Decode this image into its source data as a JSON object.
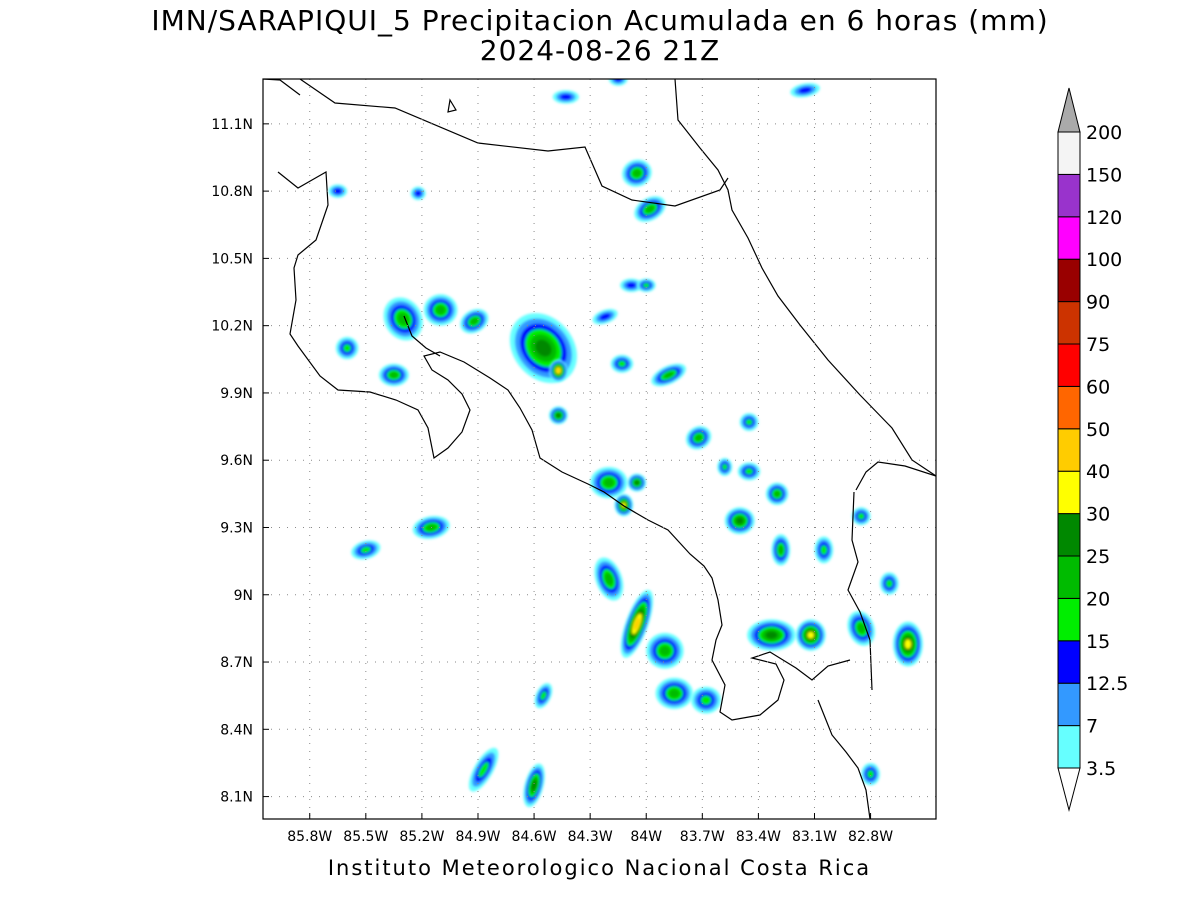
{
  "title": {
    "line1": "IMN/SARAPIQUI_5 Precipitacion Acumulada en 6 horas (mm)",
    "line2": "2024-08-26 21Z"
  },
  "credit": "Instituto Meteorologico Nacional Costa Rica",
  "map": {
    "lon_range": [
      -86.05,
      -82.45
    ],
    "lat_range": [
      8.0,
      11.3
    ],
    "lon_ticks": [
      {
        "value": -85.8,
        "label": "85.8W"
      },
      {
        "value": -85.5,
        "label": "85.5W"
      },
      {
        "value": -85.2,
        "label": "85.2W"
      },
      {
        "value": -84.9,
        "label": "84.9W"
      },
      {
        "value": -84.6,
        "label": "84.6W"
      },
      {
        "value": -84.3,
        "label": "84.3W"
      },
      {
        "value": -84.0,
        "label": "84W"
      },
      {
        "value": -83.7,
        "label": "83.7W"
      },
      {
        "value": -83.4,
        "label": "83.4W"
      },
      {
        "value": -83.1,
        "label": "83.1W"
      },
      {
        "value": -82.8,
        "label": "82.8W"
      }
    ],
    "lat_ticks": [
      {
        "value": 8.1,
        "label": "8.1N"
      },
      {
        "value": 8.4,
        "label": "8.4N"
      },
      {
        "value": 8.7,
        "label": "8.7N"
      },
      {
        "value": 9.0,
        "label": "9N"
      },
      {
        "value": 9.3,
        "label": "9.3N"
      },
      {
        "value": 9.6,
        "label": "9.6N"
      },
      {
        "value": 9.9,
        "label": "9.9N"
      },
      {
        "value": 10.2,
        "label": "10.2N"
      },
      {
        "value": 10.5,
        "label": "10.5N"
      },
      {
        "value": 10.8,
        "label": "10.8N"
      },
      {
        "value": 11.1,
        "label": "11.1N"
      }
    ],
    "grid": true
  },
  "legend": {
    "levels": [
      "3.5",
      "7",
      "12.5",
      "15",
      "20",
      "25",
      "30",
      "40",
      "50",
      "60",
      "75",
      "90",
      "100",
      "120",
      "150",
      "200"
    ],
    "colors": [
      "#ffffff",
      "#66ffff",
      "#3399ff",
      "#0000ff",
      "#00ee00",
      "#00bb00",
      "#008800",
      "#ffff00",
      "#ffcc00",
      "#ff6600",
      "#ff0000",
      "#cc3300",
      "#990000",
      "#ff00ff",
      "#9933cc",
      "#f4f4f4",
      "#aaaaaa"
    ]
  },
  "precip_cells": [
    {
      "lon": -84.55,
      "lat": 10.1,
      "peak": 6,
      "rx": 0.16,
      "ry": 0.17,
      "rot": -40
    },
    {
      "lon": -84.47,
      "lat": 10.0,
      "peak": 8,
      "rx": 0.05,
      "ry": 0.05,
      "rot": 0
    },
    {
      "lon": -85.3,
      "lat": 10.23,
      "peak": 5,
      "rx": 0.1,
      "ry": 0.1,
      "rot": -30
    },
    {
      "lon": -85.1,
      "lat": 10.27,
      "peak": 5,
      "rx": 0.09,
      "ry": 0.07,
      "rot": 0
    },
    {
      "lon": -85.6,
      "lat": 10.1,
      "peak": 4,
      "rx": 0.06,
      "ry": 0.05,
      "rot": 0
    },
    {
      "lon": -84.92,
      "lat": 10.22,
      "peak": 5,
      "rx": 0.08,
      "ry": 0.05,
      "rot": -30
    },
    {
      "lon": -85.35,
      "lat": 9.98,
      "peak": 5,
      "rx": 0.08,
      "ry": 0.05,
      "rot": 0
    },
    {
      "lon": -83.88,
      "lat": 9.98,
      "peak": 5,
      "rx": 0.1,
      "ry": 0.04,
      "rot": -25
    },
    {
      "lon": -84.13,
      "lat": 10.03,
      "peak": 4,
      "rx": 0.06,
      "ry": 0.04,
      "rot": 0
    },
    {
      "lon": -84.47,
      "lat": 9.8,
      "peak": 6,
      "rx": 0.05,
      "ry": 0.04,
      "rot": 0
    },
    {
      "lon": -83.98,
      "lat": 10.72,
      "peak": 5,
      "rx": 0.09,
      "ry": 0.05,
      "rot": -30
    },
    {
      "lon": -84.08,
      "lat": 10.38,
      "peak": 3,
      "rx": 0.06,
      "ry": 0.03,
      "rot": 0
    },
    {
      "lon": -84.22,
      "lat": 10.24,
      "peak": 3,
      "rx": 0.07,
      "ry": 0.03,
      "rot": -20
    },
    {
      "lon": -84.2,
      "lat": 9.5,
      "peak": 5,
      "rx": 0.1,
      "ry": 0.07,
      "rot": 0
    },
    {
      "lon": -84.05,
      "lat": 9.5,
      "peak": 6,
      "rx": 0.05,
      "ry": 0.04,
      "rot": 0
    },
    {
      "lon": -84.12,
      "lat": 9.4,
      "peak": 7,
      "rx": 0.05,
      "ry": 0.05,
      "rot": 0
    },
    {
      "lon": -83.72,
      "lat": 9.7,
      "peak": 5,
      "rx": 0.07,
      "ry": 0.05,
      "rot": -30
    },
    {
      "lon": -83.45,
      "lat": 9.77,
      "peak": 4,
      "rx": 0.05,
      "ry": 0.04,
      "rot": 0
    },
    {
      "lon": -83.45,
      "lat": 9.55,
      "peak": 4,
      "rx": 0.06,
      "ry": 0.04,
      "rot": 0
    },
    {
      "lon": -83.3,
      "lat": 9.45,
      "peak": 5,
      "rx": 0.06,
      "ry": 0.05,
      "rot": 0
    },
    {
      "lon": -83.5,
      "lat": 9.33,
      "peak": 6,
      "rx": 0.08,
      "ry": 0.06,
      "rot": 0
    },
    {
      "lon": -83.28,
      "lat": 9.2,
      "peak": 5,
      "rx": 0.05,
      "ry": 0.07,
      "rot": 0
    },
    {
      "lon": -83.05,
      "lat": 9.2,
      "peak": 4,
      "rx": 0.05,
      "ry": 0.06,
      "rot": 0
    },
    {
      "lon": -82.85,
      "lat": 9.35,
      "peak": 4,
      "rx": 0.05,
      "ry": 0.04,
      "rot": 0
    },
    {
      "lon": -84.05,
      "lat": 8.87,
      "peak": 8,
      "rx": 0.06,
      "ry": 0.16,
      "rot": 20
    },
    {
      "lon": -83.9,
      "lat": 8.75,
      "peak": 5,
      "rx": 0.1,
      "ry": 0.08,
      "rot": 0
    },
    {
      "lon": -83.85,
      "lat": 8.56,
      "peak": 5,
      "rx": 0.1,
      "ry": 0.07,
      "rot": 0
    },
    {
      "lon": -83.68,
      "lat": 8.53,
      "peak": 4,
      "rx": 0.08,
      "ry": 0.06,
      "rot": 0
    },
    {
      "lon": -84.2,
      "lat": 9.07,
      "peak": 5,
      "rx": 0.07,
      "ry": 0.1,
      "rot": -20
    },
    {
      "lon": -83.33,
      "lat": 8.82,
      "peak": 6,
      "rx": 0.13,
      "ry": 0.07,
      "rot": 0
    },
    {
      "lon": -83.12,
      "lat": 8.82,
      "peak": 7,
      "rx": 0.08,
      "ry": 0.07,
      "rot": 0
    },
    {
      "lon": -82.85,
      "lat": 8.85,
      "peak": 5,
      "rx": 0.07,
      "ry": 0.08,
      "rot": -20
    },
    {
      "lon": -82.6,
      "lat": 8.78,
      "peak": 7,
      "rx": 0.08,
      "ry": 0.1,
      "rot": 0
    },
    {
      "lon": -82.7,
      "lat": 9.05,
      "peak": 4,
      "rx": 0.05,
      "ry": 0.05,
      "rot": 0
    },
    {
      "lon": -84.55,
      "lat": 8.55,
      "peak": 4,
      "rx": 0.04,
      "ry": 0.06,
      "rot": 25
    },
    {
      "lon": -84.87,
      "lat": 8.22,
      "peak": 4,
      "rx": 0.05,
      "ry": 0.11,
      "rot": 30
    },
    {
      "lon": -84.6,
      "lat": 8.15,
      "peak": 6,
      "rx": 0.05,
      "ry": 0.1,
      "rot": 15
    },
    {
      "lon": -82.8,
      "lat": 8.2,
      "peak": 4,
      "rx": 0.05,
      "ry": 0.05,
      "rot": 0
    },
    {
      "lon": -85.5,
      "lat": 9.2,
      "peak": 4,
      "rx": 0.08,
      "ry": 0.04,
      "rot": -15
    },
    {
      "lon": -85.15,
      "lat": 9.3,
      "peak": 5,
      "rx": 0.1,
      "ry": 0.05,
      "rot": -10
    },
    {
      "lon": -85.65,
      "lat": 10.8,
      "peak": 3,
      "rx": 0.05,
      "ry": 0.03,
      "rot": 0
    },
    {
      "lon": -85.22,
      "lat": 10.79,
      "peak": 3,
      "rx": 0.04,
      "ry": 0.03,
      "rot": 0
    },
    {
      "lon": -84.15,
      "lat": 11.3,
      "peak": 3,
      "rx": 0.05,
      "ry": 0.03,
      "rot": 0
    },
    {
      "lon": -83.15,
      "lat": 11.25,
      "peak": 3,
      "rx": 0.08,
      "ry": 0.03,
      "rot": -10
    },
    {
      "lon": -84.43,
      "lat": 11.22,
      "peak": 3,
      "rx": 0.07,
      "ry": 0.03,
      "rot": 0
    },
    {
      "lon": -84.05,
      "lat": 10.88,
      "peak": 5,
      "rx": 0.08,
      "ry": 0.06,
      "rot": -20
    },
    {
      "lon": -84.0,
      "lat": 10.38,
      "peak": 4,
      "rx": 0.05,
      "ry": 0.03,
      "rot": 0
    },
    {
      "lon": -83.58,
      "lat": 9.57,
      "peak": 4,
      "rx": 0.04,
      "ry": 0.04,
      "rot": 0
    }
  ]
}
